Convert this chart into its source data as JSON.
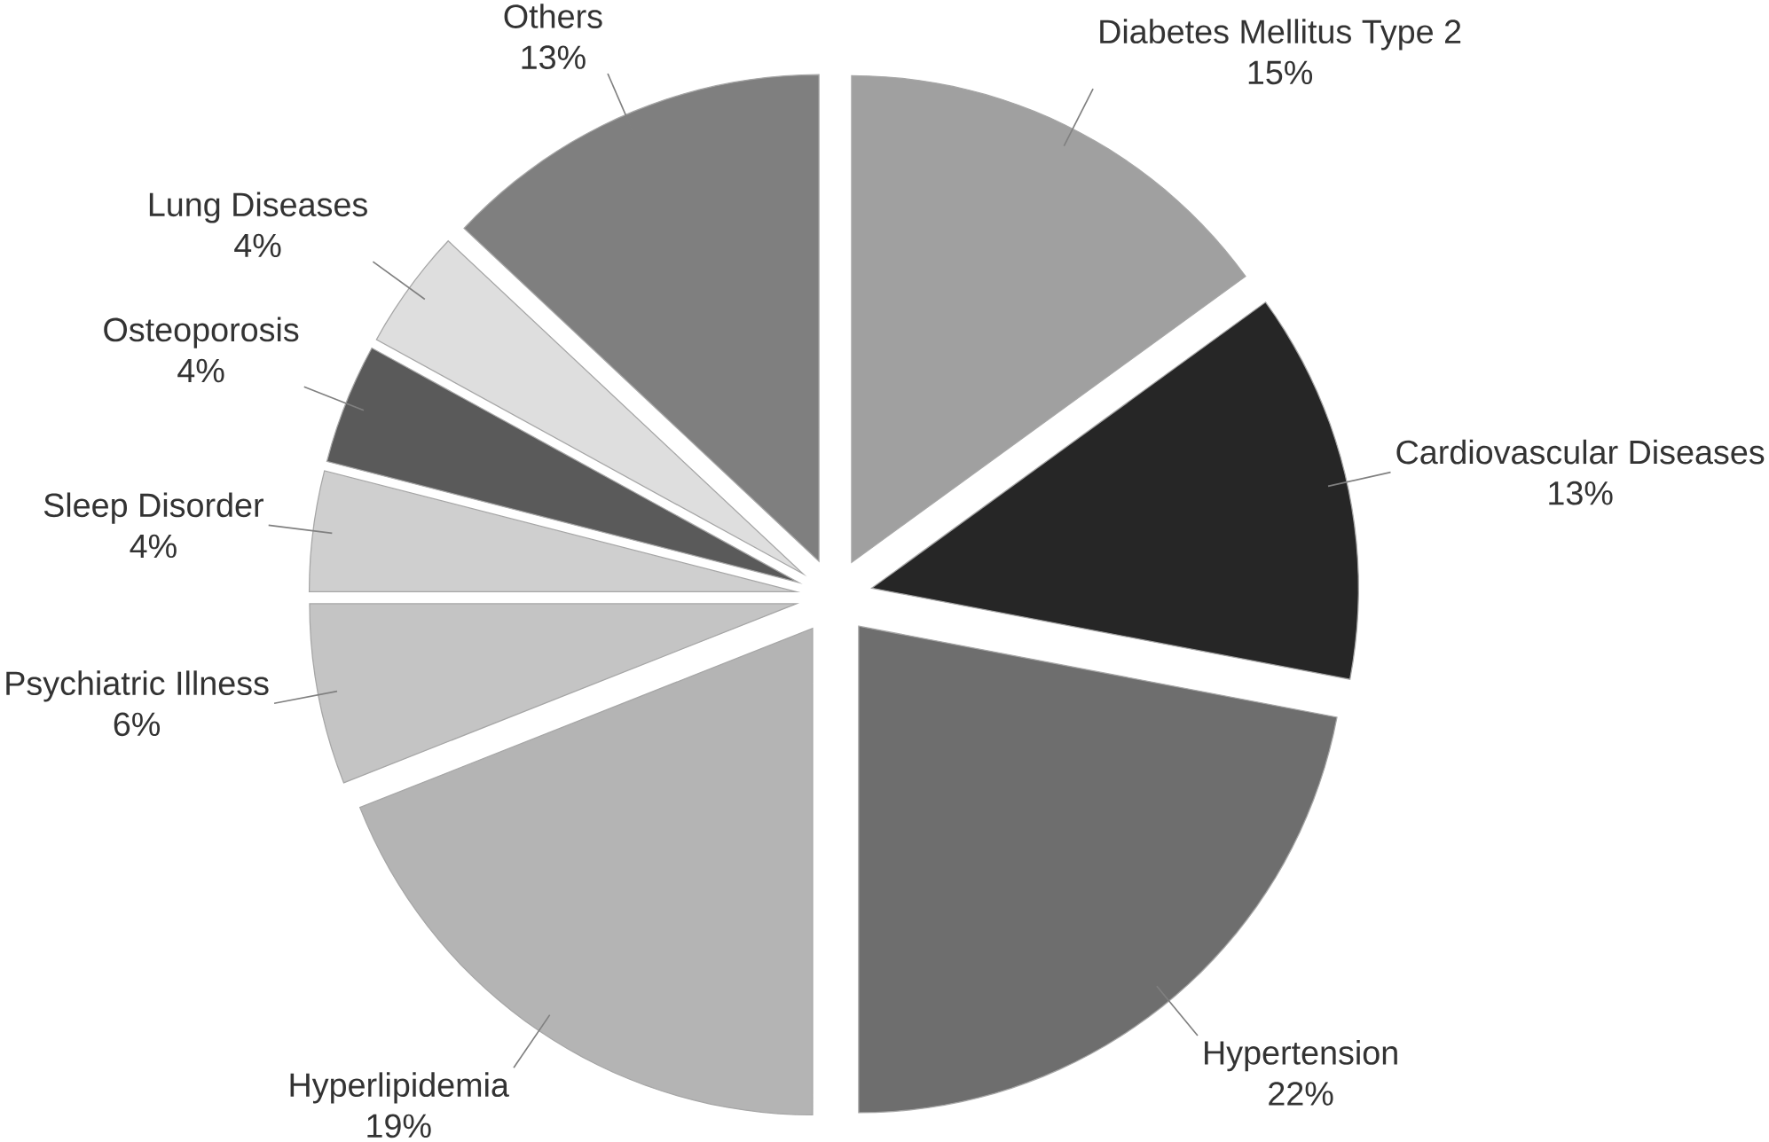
{
  "chart_data": {
    "type": "pie",
    "categories": [
      "Diabetes Mellitus Type 2",
      "Cardiovascular Diseases",
      "Hypertension",
      "Hyperlipidemia",
      "Psychiatric Illness",
      "Sleep Disorder",
      "Osteoporosis",
      "Lung Diseases",
      "Others"
    ],
    "values": [
      15,
      13,
      22,
      19,
      6,
      4,
      4,
      4,
      13
    ],
    "value_labels": [
      "15%",
      "13%",
      "22%",
      "19%",
      "6%",
      "4%",
      "4%",
      "4%",
      "13%"
    ],
    "colors": [
      "#a0a0a0",
      "#262626",
      "#6e6e6e",
      "#b4b4b4",
      "#c4c4c4",
      "#cfcfcf",
      "#5a5a5a",
      "#dedede",
      "#7f7f7f"
    ]
  }
}
